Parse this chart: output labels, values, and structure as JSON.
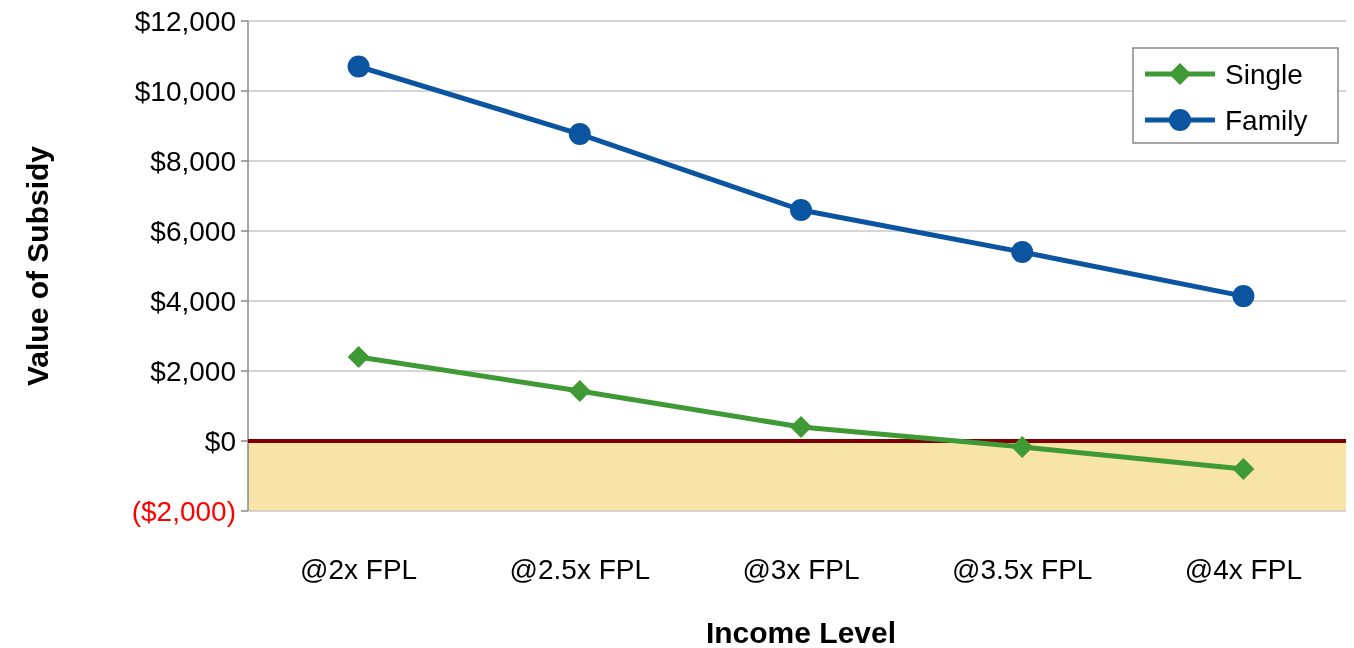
{
  "chart_data": {
    "type": "line",
    "xlabel": "Income Level",
    "ylabel": "Value of Subsidy",
    "categories": [
      "@2x FPL",
      "@2.5x FPL",
      "@3x FPL",
      "@3.5x FPL",
      "@4x FPL"
    ],
    "series": [
      {
        "name": "Single",
        "color": "#3f9a35",
        "marker": "diamond",
        "values": [
          2400,
          1430,
          400,
          -170,
          -800
        ]
      },
      {
        "name": "Family",
        "color": "#0b54a0",
        "marker": "circle",
        "values": [
          10700,
          8770,
          6600,
          5400,
          4140
        ]
      }
    ],
    "ylim": [
      -2000,
      12000
    ],
    "yticks": [
      {
        "value": -2000,
        "label": "($2,000)"
      },
      {
        "value": 0,
        "label": "$0"
      },
      {
        "value": 2000,
        "label": "$2,000"
      },
      {
        "value": 4000,
        "label": "$4,000"
      },
      {
        "value": 6000,
        "label": "$6,000"
      },
      {
        "value": 8000,
        "label": "$8,000"
      },
      {
        "value": 10000,
        "label": "$10,000"
      },
      {
        "value": 12000,
        "label": "$12,000"
      }
    ],
    "grid": "y",
    "legend": "top right",
    "line_style": "solid",
    "ref_lines": [
      {
        "axis": "y",
        "value": 0,
        "color": "#7f0000"
      }
    ],
    "bands": [
      {
        "axis": "y",
        "from": -2000,
        "to": 0,
        "color": "#f8e4a6"
      }
    ]
  }
}
